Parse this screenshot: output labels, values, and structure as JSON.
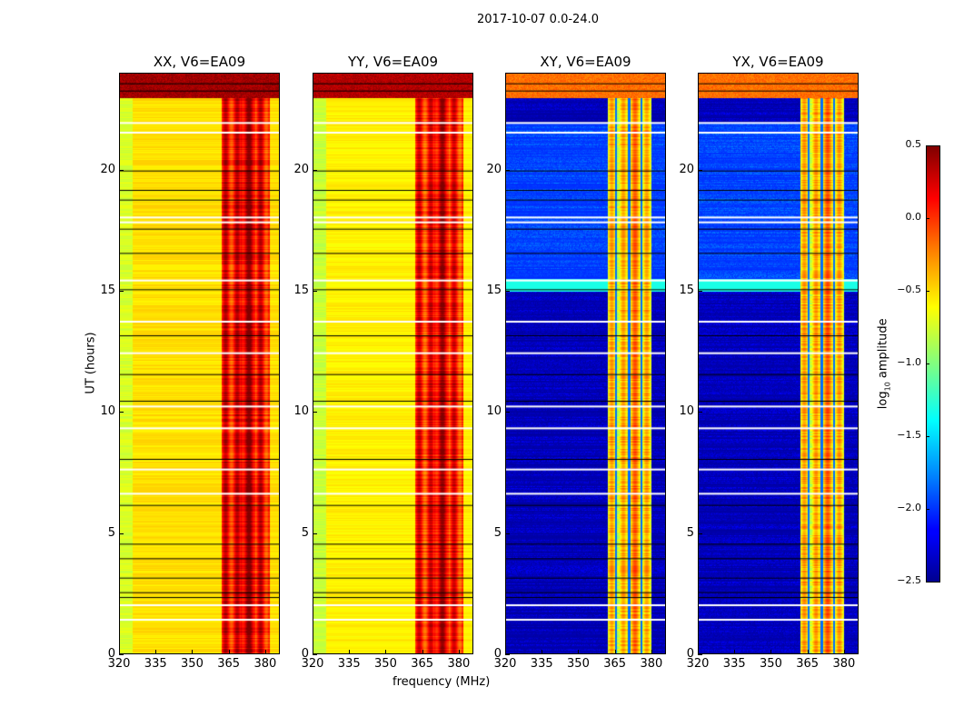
{
  "figure_title": "2017-10-07 0.0-24.0",
  "chart_data": {
    "type": "heatmap",
    "title": "2017-10-07 0.0-24.0",
    "xlabel": "frequency (MHz)",
    "ylabel": "UT (hours)",
    "xlim": [
      320,
      386
    ],
    "ylim": [
      0,
      24
    ],
    "xticks": [
      "320",
      "335",
      "350",
      "365",
      "380"
    ],
    "xtick_values": [
      320,
      335,
      350,
      365,
      380
    ],
    "yticks": [
      "0",
      "5",
      "10",
      "15",
      "20"
    ],
    "ytick_values": [
      0,
      5,
      10,
      15,
      20
    ],
    "colormap": "jet",
    "colorbar": {
      "label": "log10 amplitude",
      "label_main": "log",
      "label_sub": "10",
      "label_rest": " amplitude",
      "range": [
        -2.5,
        0.5
      ],
      "ticks": [
        "0.5",
        "0.0",
        "−0.5",
        "−1.0",
        "−1.5",
        "−2.0",
        "−2.5"
      ],
      "tick_values": [
        0.5,
        0,
        -0.5,
        -1,
        -1.5,
        -2,
        -2.5
      ]
    },
    "flagged_hours_white": [
      1.5,
      2.1,
      6.7,
      7.7,
      9.4,
      10.3,
      12.5,
      13.8,
      15.5,
      17.9,
      18.1,
      21.6,
      22.0
    ],
    "flagged_hours_black": [
      2.4,
      2.6,
      3.2,
      4.0,
      4.6,
      6.2,
      8.1,
      10.5,
      11.6,
      13.2,
      15.1,
      16.6,
      17.6,
      18.8,
      19.2,
      20.0,
      23.3,
      23.6
    ],
    "panels": [
      {
        "title": "XX, V6=EA09",
        "background_level": -0.6,
        "band_range_mhz": [
          362,
          382
        ],
        "band_level": 0.15,
        "top_level": 0.3,
        "cross": false
      },
      {
        "title": "YY, V6=EA09",
        "background_level": -0.65,
        "band_range_mhz": [
          362,
          382
        ],
        "band_level": 0.1,
        "top_level": 0.25,
        "cross": false
      },
      {
        "title": "XY, V6=EA09",
        "background_level": -2.4,
        "band_range_mhz": [
          362,
          380
        ],
        "band_level": -0.5,
        "top_level": -0.3,
        "cross": true
      },
      {
        "title": "YX, V6=EA09",
        "background_level": -2.4,
        "band_range_mhz": [
          362,
          380
        ],
        "band_level": -0.5,
        "top_level": -0.3,
        "cross": true
      }
    ]
  }
}
